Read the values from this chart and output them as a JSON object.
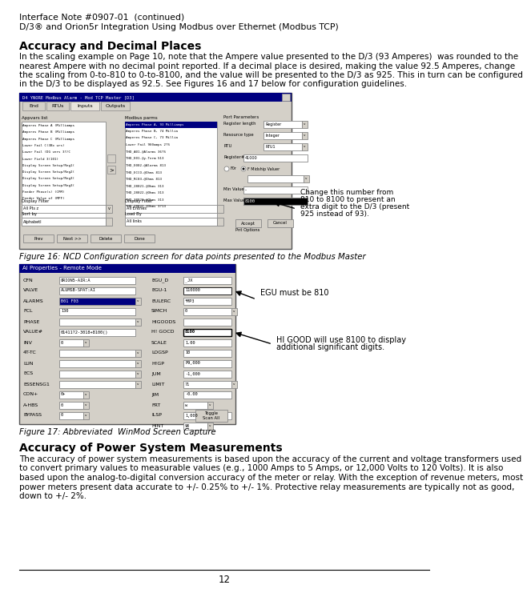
{
  "title_line1": "Interface Note #0907-01  (continued)",
  "title_line2": "D/3® and Orion5r Integration Using Modbus over Ethernet (Modbus TCP)",
  "section1_heading": "Accuracy and Decimal Places",
  "section1_body_lines": [
    "In the scaling example on Page 10, note that the Ampere value presented to the D/3 (93 Amperes)  was rounded to the",
    "nearest Ampere with no decimal point reported. If a decimal place is desired, making the value 92.5 Amperes, change",
    "the scaling from 0-to-810 to 0-to-8100, and the value will be presented to the D/3 as 925. This in turn can be configured",
    "in the D/3 to be displayed as 92.5. See Figures 16 and 17 below for configuration guidelines."
  ],
  "fig16_caption": "Figure 16: NCD Configuration screen for data points presented to the Modbus Master",
  "fig17_caption": "Figure 17: Abbreviated  WinMod Screen Capture",
  "annotation1_lines": [
    "Change this number from",
    "810 to 8100 to present an",
    "extra digit to the D/3 (present",
    "925 instead of 93)."
  ],
  "annotation2": "EGU must be 810",
  "annotation3_lines": [
    "HI GOOD will use 8100 to display",
    "additional significant digits."
  ],
  "section2_heading": "Accuracy of Power System Measurements",
  "section2_body_lines": [
    "The accuracy of power system measurements is based upon the accuracy of the current and voltage transformers used",
    "to convert primary values to measurable values (e.g., 1000 Amps to 5 Amps, or 12,000 Volts to 120 Volts). It is also",
    "based upon the analog-to-digital conversion accuracy of the meter or relay. With the exception of revenue meters, most",
    "power meters present data accurate to +/- 0.25% to +/- 1%. Protective relay measurements are typically not as good,",
    "down to +/- 2%."
  ],
  "page_number": "12",
  "bg_color": "#ffffff",
  "text_color": "#000000",
  "win_bg": "#d4d0c8",
  "win_title": "#000080",
  "win_border": "#808080"
}
